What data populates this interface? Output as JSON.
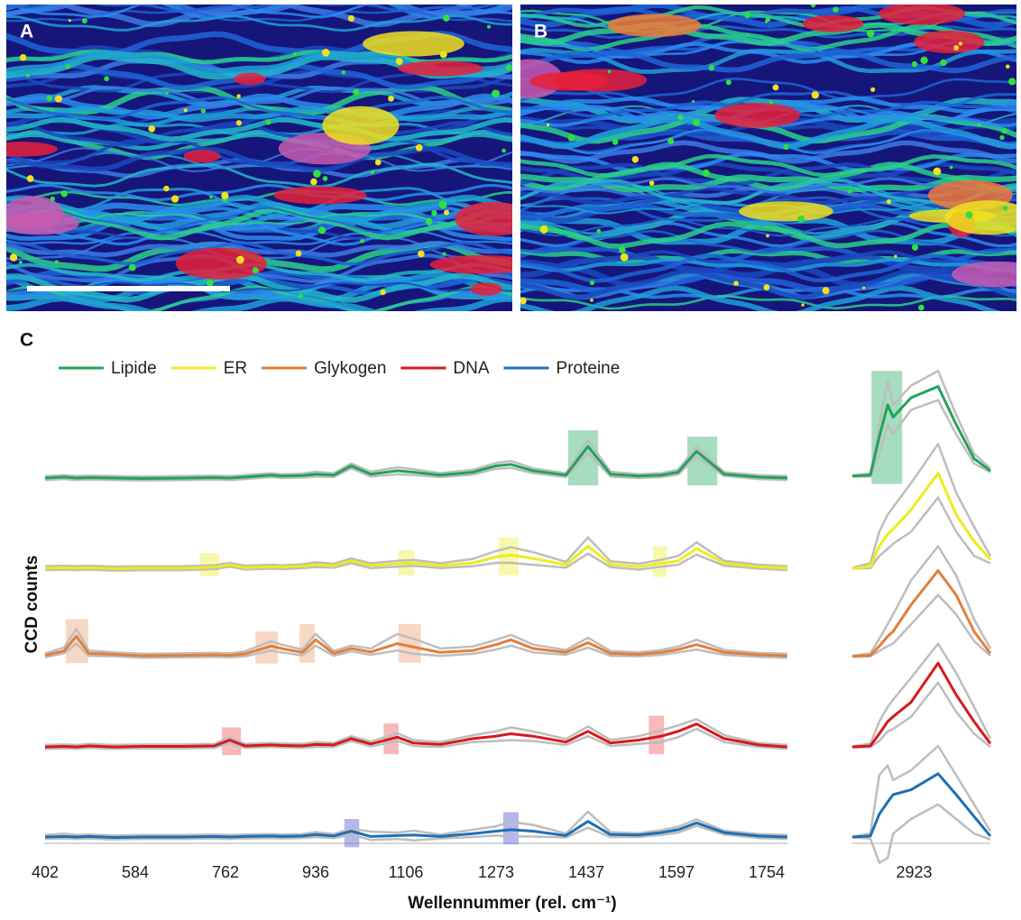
{
  "panels": [
    {
      "label": "A"
    },
    {
      "label": "B"
    }
  ],
  "chart_data": [
    {
      "type": "line",
      "label": "C",
      "y_label": "CCD counts",
      "x_label": "Wellennummer (rel. cm⁻¹)",
      "xscale": "piecewise",
      "x": [
        402,
        440,
        465,
        490,
        540,
        600,
        680,
        740,
        770,
        800,
        850,
        870,
        910,
        936,
        970,
        1003,
        1040,
        1090,
        1120,
        1170,
        1230,
        1273,
        1300,
        1340,
        1400,
        1440,
        1480,
        1530,
        1570,
        1600,
        1632,
        1680,
        1740,
        1790
      ],
      "xlim": [
        400,
        1790
      ],
      "xticks": [
        402,
        584,
        762,
        936,
        1106,
        1273,
        1437,
        1597,
        1754
      ],
      "ylim": [
        0,
        100
      ],
      "series": [
        {
          "name": "Lipide",
          "color": "#22a35a",
          "band_color": "#5cc08a",
          "values": [
            75,
            75.2,
            75,
            75.1,
            75,
            74.9,
            75,
            75.1,
            75,
            75.2,
            75.6,
            75.4,
            75.5,
            75.8,
            75.6,
            77.5,
            75.8,
            76.5,
            76.2,
            75.6,
            76.2,
            77.5,
            77.8,
            76.5,
            75.6,
            81.5,
            75.8,
            75.4,
            75.6,
            76.2,
            80.5,
            75.8,
            75.2,
            75
          ],
          "upper": [
            75.4,
            75.6,
            75.4,
            75.5,
            75.4,
            75.3,
            75.4,
            75.5,
            75.4,
            75.6,
            76,
            75.8,
            75.9,
            76.3,
            76,
            78,
            76.3,
            77.2,
            76.8,
            76,
            76.7,
            78.1,
            78.5,
            77,
            76,
            82.8,
            76.3,
            75.8,
            76,
            76.7,
            81.5,
            76.2,
            75.6,
            75.4
          ],
          "lower": [
            74.6,
            74.8,
            74.6,
            74.7,
            74.6,
            74.5,
            74.6,
            74.7,
            74.6,
            74.8,
            75.2,
            75,
            75.1,
            75.3,
            75.2,
            77,
            75.3,
            75.8,
            75.6,
            75.2,
            75.7,
            76.9,
            77.1,
            76,
            75.2,
            80.2,
            75.3,
            75,
            75.2,
            75.7,
            79.5,
            75.4,
            74.8,
            74.6
          ],
          "bands": [
            [
              1404,
              1458
            ],
            [
              1616,
              1668
            ]
          ]
        },
        {
          "name": "ER",
          "color": "#ecec1e",
          "band_color": "#f3f36a",
          "values": [
            56.5,
            56.6,
            56.5,
            56.6,
            56.4,
            56.5,
            56.5,
            56.7,
            57.2,
            56.6,
            56.8,
            56.7,
            56.9,
            57.2,
            57,
            58,
            57,
            57.4,
            57.6,
            57,
            57.6,
            58.8,
            59.2,
            58.5,
            57.2,
            61,
            57.3,
            56.8,
            57.5,
            58,
            60.5,
            57.5,
            56.8,
            56.5
          ],
          "upper": [
            56.9,
            57,
            56.9,
            57,
            56.8,
            56.9,
            56.9,
            57.1,
            57.6,
            57,
            57.2,
            57.1,
            57.3,
            57.7,
            57.4,
            58.5,
            57.5,
            58,
            58.2,
            57.5,
            58.4,
            60,
            60.8,
            59.8,
            57.8,
            62.8,
            57.9,
            57.4,
            58.2,
            59,
            61.8,
            58,
            57.2,
            56.9
          ],
          "lower": [
            56.1,
            56.2,
            56.1,
            56.2,
            56,
            56.1,
            56.1,
            56.3,
            56.8,
            56.2,
            56.4,
            56.3,
            56.5,
            56.7,
            56.6,
            57.5,
            56.5,
            56.8,
            57,
            56.5,
            56.9,
            57.6,
            57.6,
            57.2,
            56.6,
            59.5,
            56.7,
            56.2,
            56.8,
            57.2,
            59.3,
            57,
            56.4,
            56.1
          ],
          "bands": [
            [
              712,
              750
            ],
            [
              1092,
              1121
            ],
            [
              1278,
              1314
            ],
            [
              1555,
              1580
            ]
          ]
        },
        {
          "name": "Glykogen",
          "color": "#e0803a",
          "band_color": "#f0b896",
          "values": [
            38.6,
            39.5,
            42.5,
            39,
            38.8,
            38.5,
            38.6,
            38.7,
            38.6,
            38.9,
            40.5,
            40,
            39.2,
            41.8,
            39,
            40,
            39.3,
            41,
            40.3,
            39.2,
            39.6,
            40.8,
            41.8,
            40,
            39.2,
            41.2,
            39,
            38.8,
            39.2,
            39.8,
            40.8,
            39.2,
            38.7,
            38.5
          ],
          "upper": [
            39,
            40.2,
            44,
            39.6,
            39.2,
            38.9,
            39,
            39.1,
            39,
            39.4,
            41.5,
            40.8,
            39.8,
            43,
            39.5,
            40.6,
            40,
            43,
            42,
            40,
            40.4,
            41.8,
            42.8,
            40.8,
            39.7,
            42.2,
            39.5,
            39.2,
            39.7,
            40.4,
            41.8,
            39.7,
            39.1,
            38.9
          ],
          "lower": [
            38.2,
            39,
            41,
            38.5,
            38.4,
            38.1,
            38.2,
            38.3,
            38.2,
            38.4,
            39.6,
            39.2,
            38.6,
            40.6,
            38.5,
            39.4,
            38.7,
            39.6,
            38.9,
            38.5,
            38.9,
            39.8,
            40.6,
            39.2,
            38.7,
            40.2,
            38.5,
            38.4,
            38.7,
            39.2,
            39.8,
            38.7,
            38.3,
            38.1
          ],
          "bands": [
            [
              444,
              489
            ],
            [
              820,
              863
            ],
            [
              905,
              934
            ],
            [
              1092,
              1134
            ]
          ]
        },
        {
          "name": "DNA",
          "color": "#d7191c",
          "band_color": "#f08080",
          "values": [
            19.8,
            19.9,
            19.8,
            20,
            19.8,
            19.9,
            19.9,
            20,
            21.2,
            20,
            20.2,
            20.1,
            20,
            20.3,
            20.2,
            21.5,
            20.4,
            21.8,
            20.6,
            20.3,
            21.5,
            22,
            22.5,
            22,
            20.8,
            23,
            20.6,
            21.2,
            22,
            23,
            24.5,
            21.5,
            20.2,
            19.8
          ],
          "upper": [
            20.2,
            20.3,
            20.2,
            20.4,
            20.2,
            20.3,
            20.3,
            20.4,
            21.8,
            20.4,
            20.6,
            20.5,
            20.4,
            20.8,
            20.6,
            22,
            20.9,
            22.6,
            21.2,
            20.8,
            22.2,
            23,
            23.8,
            23,
            21.4,
            24,
            21.2,
            22,
            23.2,
            24.2,
            25.5,
            22.2,
            20.6,
            20.2
          ],
          "lower": [
            19.4,
            19.5,
            19.4,
            19.6,
            19.4,
            19.5,
            19.5,
            19.6,
            20.6,
            19.6,
            19.8,
            19.7,
            19.6,
            19.8,
            19.8,
            21,
            19.9,
            21,
            20,
            19.8,
            20.8,
            21,
            21.2,
            21,
            20.2,
            22,
            20,
            20.4,
            20.8,
            21.8,
            23.5,
            20.8,
            19.8,
            19.4
          ],
          "bands": [
            [
              755,
              792
            ],
            [
              1064,
              1092
            ],
            [
              1548,
              1575
            ]
          ]
        },
        {
          "name": "Proteine",
          "color": "#1f6fb4",
          "band_color": "#7a7ae0",
          "values": [
            1.3,
            1.4,
            1.3,
            1.4,
            1.2,
            1.3,
            1.3,
            1.4,
            1.3,
            1.4,
            1.5,
            1.4,
            1.5,
            1.8,
            1.5,
            2.5,
            1.4,
            1.6,
            1.7,
            1.4,
            2,
            2.5,
            2.8,
            2.5,
            1.6,
            4.5,
            1.8,
            1.7,
            2.2,
            2.8,
            4.2,
            2.2,
            1.5,
            1.3
          ],
          "upper": [
            1.7,
            2,
            1.7,
            1.8,
            1.6,
            1.7,
            1.7,
            1.8,
            1.7,
            1.8,
            1.9,
            1.8,
            1.9,
            2.3,
            1.9,
            3,
            2.4,
            2.2,
            2.6,
            1.8,
            2.8,
            3.5,
            4.4,
            3.8,
            2,
            6.5,
            2.3,
            2.1,
            2.7,
            3.4,
            4.9,
            2.6,
            1.9,
            1.7
          ],
          "lower": [
            0.9,
            1,
            0.9,
            1,
            0.8,
            0.9,
            0.9,
            1,
            0.9,
            1,
            1.1,
            1,
            1.1,
            1.3,
            1.1,
            1.8,
            0.7,
            0.9,
            0.6,
            1,
            1.3,
            1.6,
            1.4,
            1.4,
            1.2,
            3.2,
            1.3,
            1.3,
            1.7,
            2.2,
            3.6,
            1.8,
            1.1,
            0.9
          ],
          "bands": [
            [
              990,
              1018
            ],
            [
              1286,
              1314
            ]
          ]
        }
      ]
    },
    {
      "type": "line",
      "xscale": "linear",
      "x": [
        2820,
        2850,
        2865,
        2879,
        2888,
        2918,
        2963,
        2993,
        3023,
        3050
      ],
      "xlim": [
        2820,
        3050
      ],
      "xticks": [
        2923
      ],
      "ylim": [
        0,
        100
      ],
      "series": [
        {
          "color": "#22a35a",
          "band_color": "#5cc08a",
          "values": [
            75.4,
            75.6,
            83.5,
            90,
            87.5,
            91.5,
            93.8,
            86,
            79,
            76.5
          ],
          "upper": [
            75.5,
            76,
            86,
            95,
            90,
            94,
            97,
            88,
            80,
            77
          ],
          "lower": [
            75.3,
            75.3,
            80,
            86,
            84,
            89,
            91,
            84,
            78,
            76.2
          ],
          "bands": [
            [
              2852,
              2903
            ]
          ]
        },
        {
          "color": "#ecec1e",
          "values": [
            56.5,
            56.8,
            61,
            63.5,
            64.5,
            68.5,
            76,
            67.5,
            62,
            58.3
          ],
          "upper": [
            56.6,
            57.5,
            64,
            67.5,
            69,
            74,
            82,
            72,
            65,
            59
          ],
          "lower": [
            56.4,
            56.5,
            59,
            60.5,
            61.5,
            64,
            71,
            64,
            59,
            57.5
          ]
        },
        {
          "color": "#e0803a",
          "values": [
            38.4,
            38.6,
            40.5,
            42.5,
            43.5,
            49,
            56,
            51,
            43.5,
            39
          ],
          "upper": [
            38.5,
            39,
            42,
            45,
            47,
            54,
            61,
            55,
            46,
            40
          ],
          "lower": [
            38.3,
            38.4,
            39.5,
            40.5,
            41,
            45,
            51,
            47,
            41.5,
            38.5
          ]
        },
        {
          "color": "#d7191c",
          "values": [
            19.8,
            20,
            22.5,
            25,
            26,
            29,
            37,
            30.5,
            25,
            20.5
          ],
          "upper": [
            19.9,
            20.5,
            25,
            28,
            29.5,
            34,
            41,
            35,
            28,
            21.5
          ],
          "lower": [
            19.7,
            19.8,
            21,
            23,
            23.5,
            26,
            33,
            27,
            22.5,
            19.8
          ]
        },
        {
          "color": "#1f6fb4",
          "values": [
            1.3,
            1.5,
            6,
            8.5,
            10,
            11,
            14.3,
            10,
            5.5,
            1.5
          ],
          "upper": [
            1.4,
            2,
            14,
            16,
            13,
            15,
            20,
            14,
            8,
            2.5
          ],
          "lower": [
            1.2,
            1,
            -4,
            -3,
            2,
            5,
            8,
            5,
            2,
            0.8
          ]
        }
      ]
    }
  ]
}
